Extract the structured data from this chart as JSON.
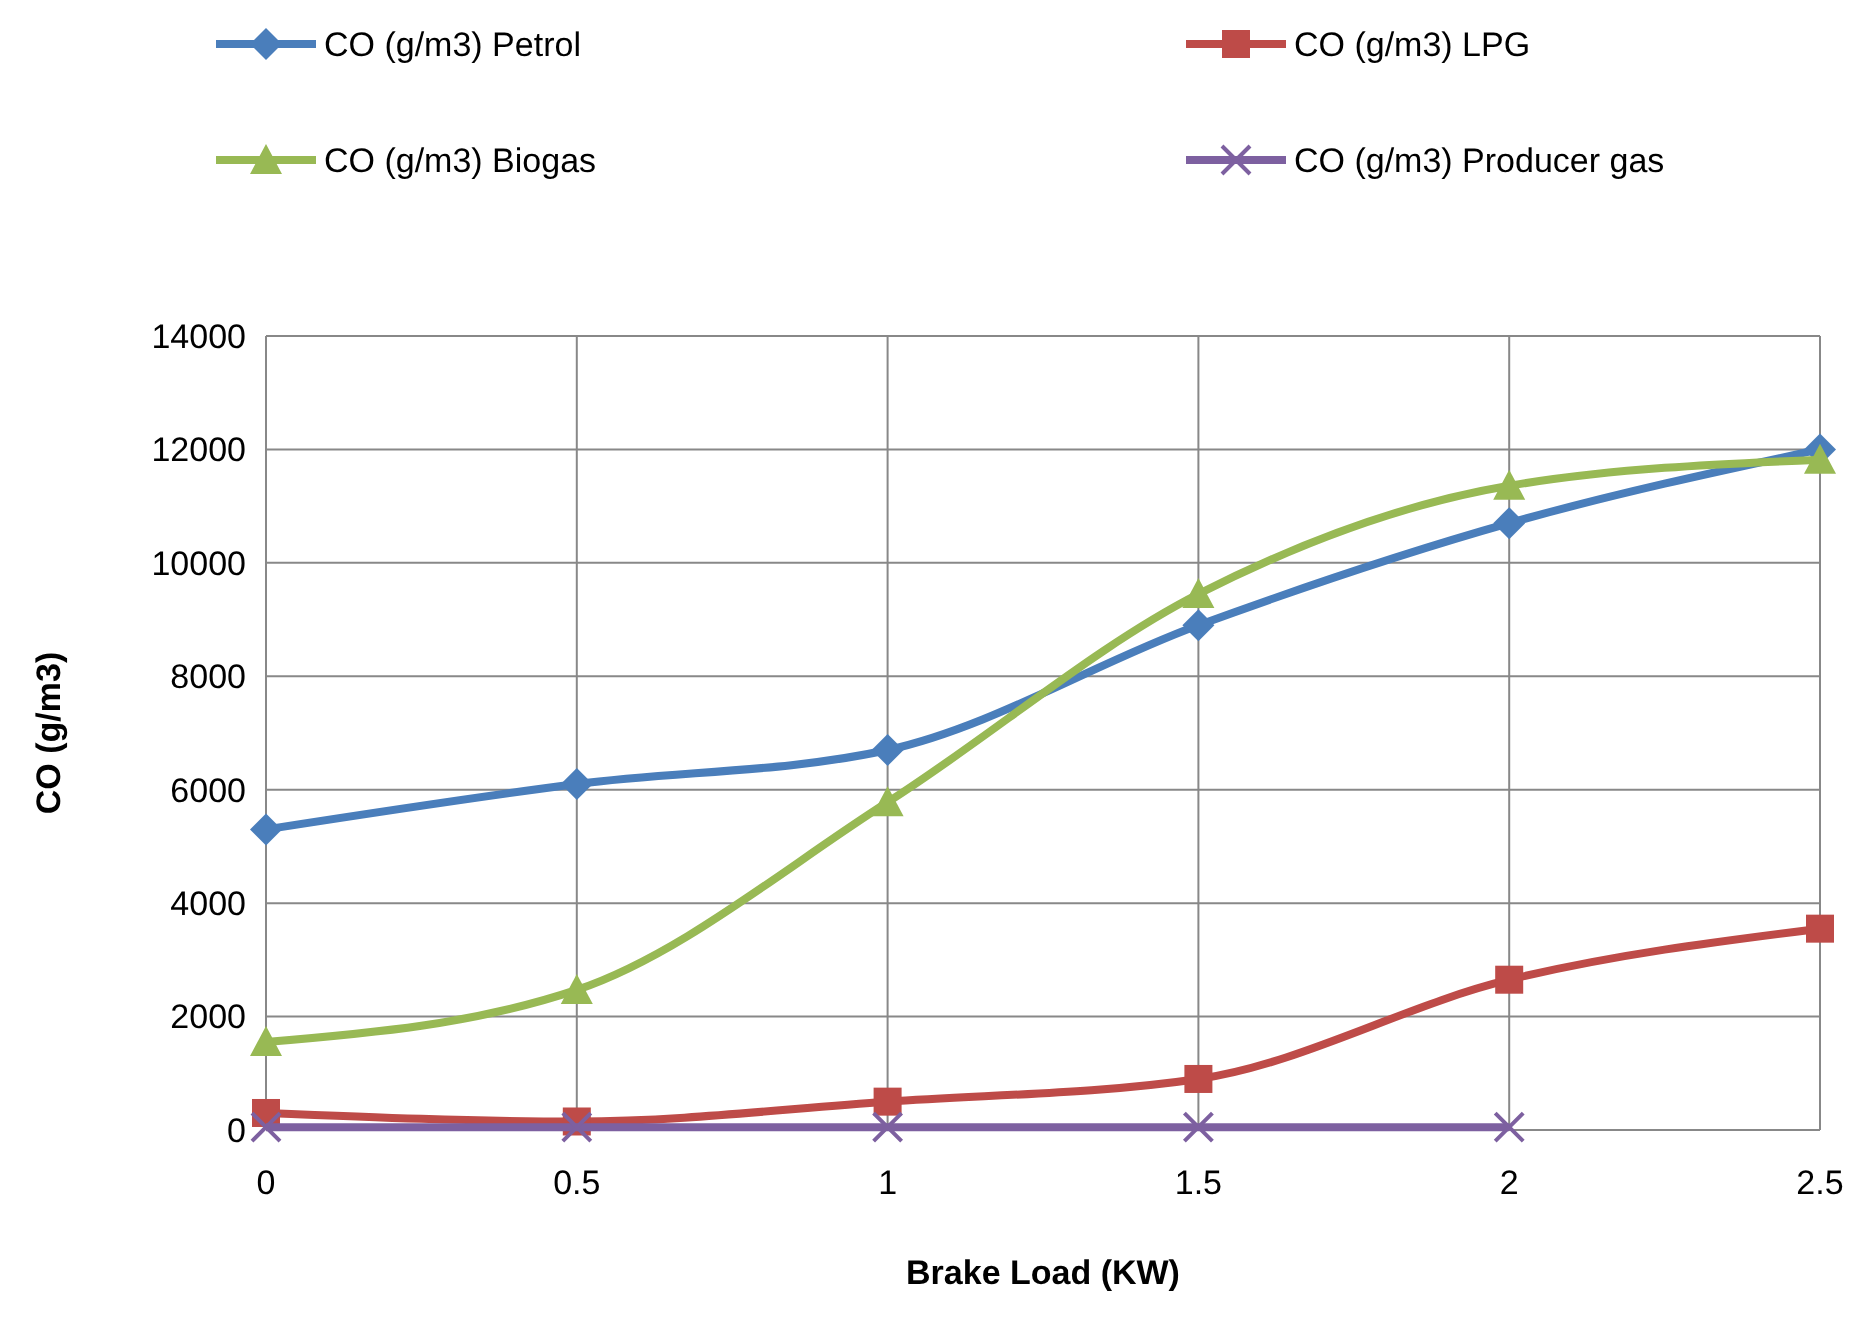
{
  "chart_data": {
    "type": "line",
    "xlabel": "Brake Load (KW)",
    "ylabel": "CO (g/m3)",
    "x": [
      0,
      0.5,
      1,
      1.5,
      2,
      2.5
    ],
    "xlim": [
      0,
      2.5
    ],
    "xticks": [
      0,
      0.5,
      1,
      1.5,
      2,
      2.5
    ],
    "ylim": [
      0,
      14000
    ],
    "yticks": [
      0,
      2000,
      4000,
      6000,
      8000,
      10000,
      12000,
      14000
    ],
    "grid": true,
    "legend": "top",
    "series": [
      {
        "name": "CO (g/m3) Petrol",
        "color": "#4a7ebb",
        "marker": "diamond",
        "values": [
          5300,
          6100,
          6700,
          8900,
          10700,
          12000
        ]
      },
      {
        "name": "CO (g/m3) LPG",
        "color": "#be4b48",
        "marker": "square",
        "values": [
          300,
          150,
          500,
          900,
          2650,
          3550
        ]
      },
      {
        "name": "CO (g/m3) Biogas",
        "color": "#98b954",
        "marker": "triangle",
        "values": [
          1550,
          2470,
          5780,
          9450,
          11360,
          11820
        ]
      },
      {
        "name": "CO (g/m3) Producer gas",
        "color": "#7d60a0",
        "marker": "cross",
        "values": [
          50,
          50,
          50,
          50,
          50,
          null
        ]
      }
    ]
  }
}
